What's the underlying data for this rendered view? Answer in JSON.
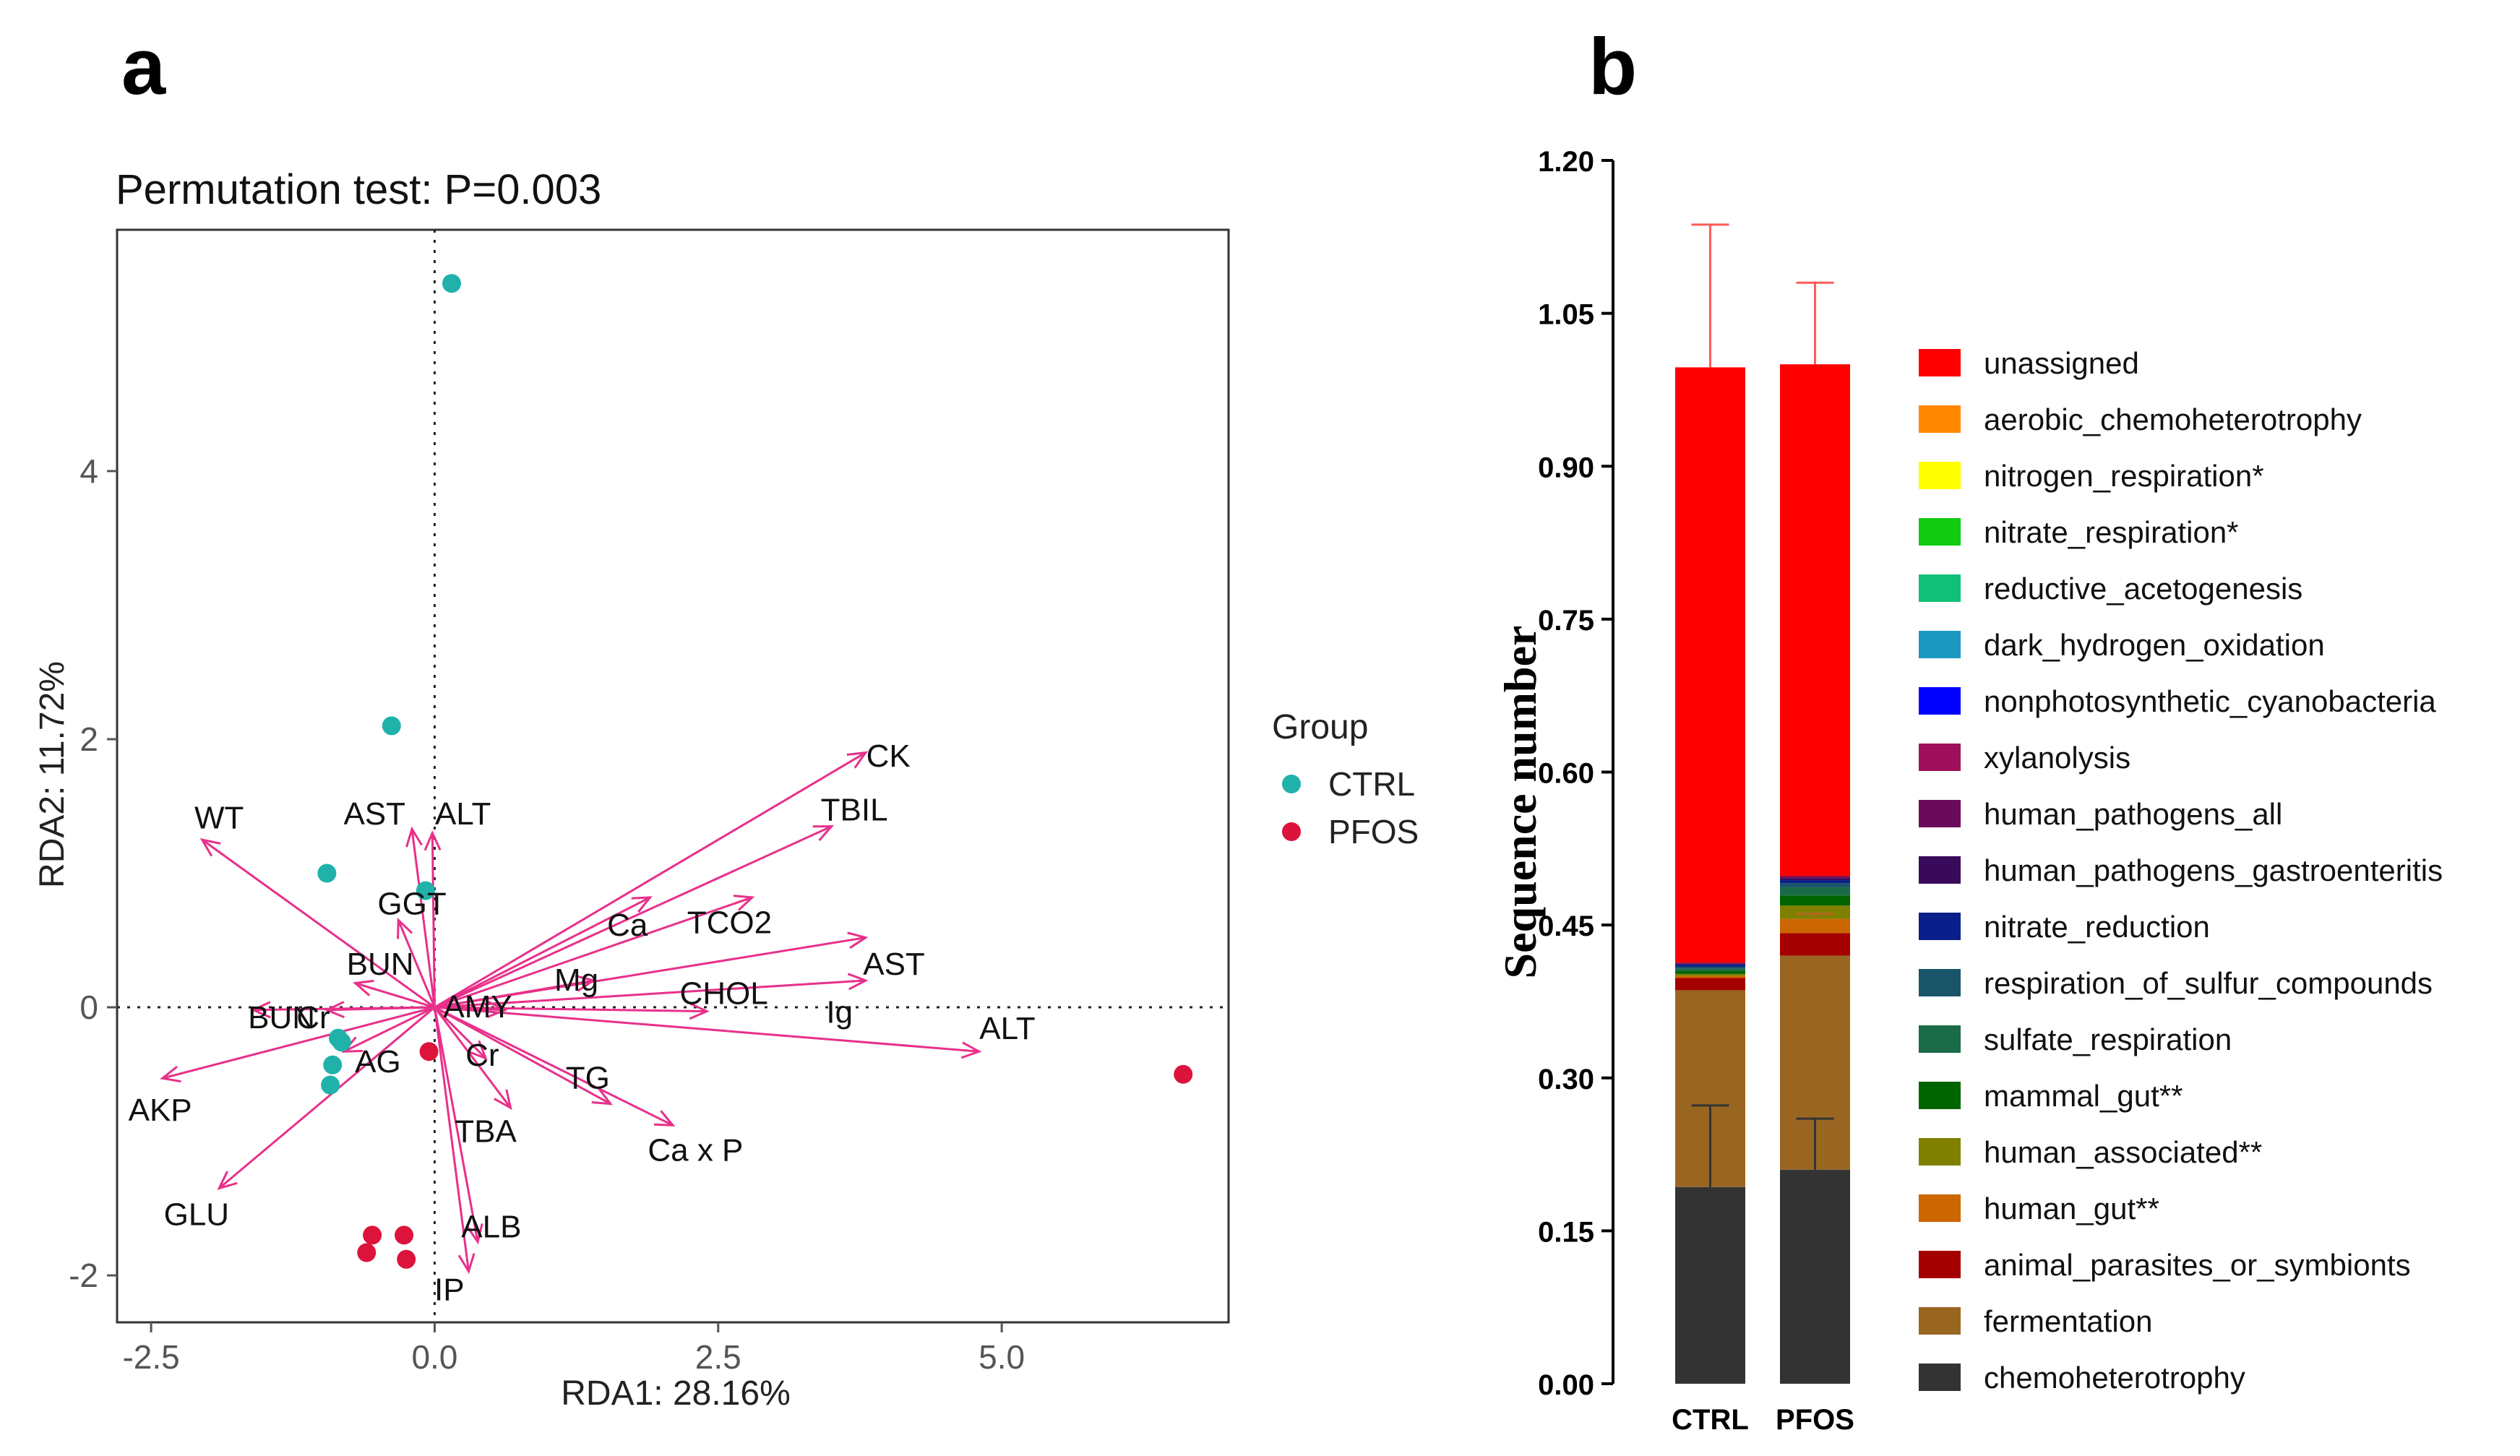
{
  "panel_a": {
    "label": "a",
    "title": "Permutation test: P=0.003",
    "legend_title": "Group"
  },
  "panel_b": {
    "label": "b"
  },
  "colors": {
    "CTRL": "#20b2aa",
    "PFOS": "#dc143c",
    "arrow": "#e8308a"
  },
  "chart_data": [
    {
      "type": "scatter",
      "title": "Permutation test: P=0.003",
      "xlabel": "RDA1: 28.16%",
      "ylabel": "RDA2: 11.72%",
      "xlim": [
        -2.8,
        7.0
      ],
      "ylim": [
        -2.35,
        5.8
      ],
      "x_ticks": [
        -2.5,
        0.0,
        2.5,
        5.0
      ],
      "x_tick_labels": [
        "-2.5",
        "0.0",
        "2.5",
        "5.0"
      ],
      "y_ticks": [
        -2,
        0,
        2,
        4
      ],
      "y_tick_labels": [
        "-2",
        "0",
        "2",
        "4"
      ],
      "grid": false,
      "legend_position": "right",
      "series": [
        {
          "name": "CTRL",
          "points": [
            [
              0.15,
              5.4
            ],
            [
              -0.38,
              2.1
            ],
            [
              -0.95,
              1.0
            ],
            [
              -0.08,
              0.87
            ],
            [
              -0.85,
              -0.23
            ],
            [
              -0.82,
              -0.26
            ],
            [
              -0.9,
              -0.43
            ],
            [
              -0.92,
              -0.58
            ]
          ]
        },
        {
          "name": "PFOS",
          "points": [
            [
              6.6,
              -0.5
            ],
            [
              -0.05,
              -0.33
            ],
            [
              -0.55,
              -1.7
            ],
            [
              -0.27,
              -1.7
            ],
            [
              -0.6,
              -1.83
            ],
            [
              -0.25,
              -1.88
            ]
          ]
        }
      ],
      "vectors": [
        {
          "name": "CK",
          "x": 3.8,
          "y": 1.9,
          "label_x": 4.0,
          "label_y": 1.88
        },
        {
          "name": "TBIL",
          "x": 3.5,
          "y": 1.35,
          "label_x": 3.7,
          "label_y": 1.48
        },
        {
          "name": "TCO2",
          "x": 2.8,
          "y": 0.82,
          "label_x": 2.6,
          "label_y": 0.64
        },
        {
          "name": "Ca",
          "x": 1.9,
          "y": 0.82,
          "label_x": 1.7,
          "label_y": 0.62
        },
        {
          "name": "AST",
          "x": 3.8,
          "y": 0.52,
          "label_x": 4.05,
          "label_y": 0.33
        },
        {
          "name": "Mg",
          "x": 1.4,
          "y": 0.2,
          "label_x": 1.25,
          "label_y": 0.21
        },
        {
          "name": "CHOL",
          "x": 3.8,
          "y": 0.2,
          "label_x": 2.55,
          "label_y": 0.11
        },
        {
          "name": "Ig",
          "x": 2.4,
          "y": -0.03,
          "label_x": 3.57,
          "label_y": -0.03
        },
        {
          "name": "ALT",
          "x": 4.8,
          "y": -0.33,
          "label_x": 5.05,
          "label_y": -0.15
        },
        {
          "name": "TG",
          "x": 1.55,
          "y": -0.72,
          "label_x": 1.35,
          "label_y": -0.52
        },
        {
          "name": "Ca x P",
          "x": 2.1,
          "y": -0.88,
          "label_x": 2.3,
          "label_y": -1.06
        },
        {
          "name": "TBA",
          "x": 0.67,
          "y": -0.75,
          "label_x": 0.45,
          "label_y": -0.92
        },
        {
          "name": "Cr",
          "x": 0.45,
          "y": -0.38,
          "label_x": 0.42,
          "label_y": -0.35
        },
        {
          "name": "AMY",
          "x": 0.62,
          "y": -0.02,
          "label_x": 0.38,
          "label_y": 0.01
        },
        {
          "name": "ALB",
          "x": 0.38,
          "y": -1.75,
          "label_x": 0.5,
          "label_y": -1.63
        },
        {
          "name": "IP",
          "x": 0.3,
          "y": -1.97,
          "label_x": 0.13,
          "label_y": -2.1
        },
        {
          "name": "GGT",
          "x": -0.32,
          "y": 0.65,
          "label_x": -0.2,
          "label_y": 0.78
        },
        {
          "name": "AST",
          "x": -0.2,
          "y": 1.33,
          "label_x": -0.53,
          "label_y": 1.45
        },
        {
          "name": "ALT",
          "x": -0.02,
          "y": 1.3,
          "label_x": 0.25,
          "label_y": 1.45
        },
        {
          "name": "BUN",
          "x": -0.7,
          "y": 0.18,
          "label_x": -0.48,
          "label_y": 0.33
        },
        {
          "name": "BUN",
          "x": -1.6,
          "y": -0.02,
          "label_x": -1.35,
          "label_y": -0.07
        },
        {
          "name": "Cr",
          "x": -0.95,
          "y": -0.02,
          "label_x": -1.07,
          "label_y": -0.07
        },
        {
          "name": "AG",
          "x": -0.8,
          "y": -0.33,
          "label_x": -0.5,
          "label_y": -0.4
        },
        {
          "name": "WT",
          "x": -2.05,
          "y": 1.25,
          "label_x": -1.9,
          "label_y": 1.42
        },
        {
          "name": "AKP",
          "x": -2.4,
          "y": -0.53,
          "label_x": -2.42,
          "label_y": -0.76
        },
        {
          "name": "GLU",
          "x": -1.9,
          "y": -1.35,
          "label_x": -2.1,
          "label_y": -1.54
        }
      ]
    },
    {
      "type": "bar",
      "stacked": true,
      "title": "",
      "xlabel": "",
      "ylabel": "Sequence number",
      "categories": [
        "CTRL",
        "PFOS"
      ],
      "ylim": [
        0,
        1.2
      ],
      "y_ticks": [
        0,
        0.15,
        0.3,
        0.45,
        0.6,
        0.75,
        0.9,
        1.05,
        1.2
      ],
      "y_tick_labels": [
        "0.00",
        "0.15",
        "0.30",
        "0.45",
        "0.60",
        "0.75",
        "0.90",
        "1.05",
        "1.20"
      ],
      "legend_position": "right",
      "series": [
        {
          "name": "chemoheterotrophy",
          "color": "#333333",
          "values": [
            0.193,
            0.21
          ],
          "error": [
            0.08,
            0.05
          ]
        },
        {
          "name": "fermentation",
          "color": "#996622",
          "values": [
            0.193,
            0.21
          ],
          "error": [
            0.0,
            0.0
          ]
        },
        {
          "name": "animal_parasites_or_symbionts",
          "color": "#a50000",
          "values": [
            0.012,
            0.022
          ],
          "error": [
            0.0,
            0.0
          ]
        },
        {
          "name": "human_gut**",
          "color": "#cc6600",
          "values": [
            0.002,
            0.014
          ],
          "error": [
            0.0,
            0.005
          ]
        },
        {
          "name": "human_associated**",
          "color": "#808000",
          "values": [
            0.002,
            0.013
          ],
          "error": [
            0.0,
            0.0
          ]
        },
        {
          "name": "mammal_gut**",
          "color": "#006400",
          "values": [
            0.003,
            0.01
          ],
          "error": [
            0.0,
            0.0
          ]
        },
        {
          "name": "sulfate_respiration",
          "color": "#1b6b49",
          "values": [
            0.002,
            0.008
          ],
          "error": [
            0.0,
            0.0
          ]
        },
        {
          "name": "respiration_of_sulfur_compounds",
          "color": "#1a5468",
          "values": [
            0.002,
            0.004
          ],
          "error": [
            0.0,
            0.0
          ]
        },
        {
          "name": "nitrate_reduction",
          "color": "#0a1f8a",
          "values": [
            0.002,
            0.003
          ],
          "error": [
            0.0,
            0.0
          ]
        },
        {
          "name": "human_pathogens_gastroenteritis",
          "color": "#3a0a5a",
          "values": [
            0.001,
            0.002
          ],
          "error": [
            0.0,
            0.0
          ]
        },
        {
          "name": "human_pathogens_all",
          "color": "#6a0a5a",
          "values": [
            0.001,
            0.002
          ],
          "error": [
            0.0,
            0.0
          ]
        },
        {
          "name": "xylanolysis",
          "color": "#a0105a",
          "values": [
            0.0,
            0.0
          ],
          "error": [
            0.0,
            0.0
          ]
        },
        {
          "name": "nonphotosynthetic_cyanobacteria",
          "color": "#0000ff",
          "values": [
            0.0,
            0.0
          ],
          "error": [
            0.0,
            0.0
          ]
        },
        {
          "name": "dark_hydrogen_oxidation",
          "color": "#1a98c0",
          "values": [
            0.0,
            0.0
          ],
          "error": [
            0.0,
            0.0
          ]
        },
        {
          "name": "reductive_acetogenesis",
          "color": "#11c078",
          "values": [
            0.0,
            0.0
          ],
          "error": [
            0.0,
            0.0
          ]
        },
        {
          "name": "nitrate_respiration*",
          "color": "#11cc11",
          "values": [
            0.0,
            0.0
          ],
          "error": [
            0.0,
            0.0
          ]
        },
        {
          "name": "nitrogen_respiration*",
          "color": "#ffff00",
          "values": [
            0.0,
            0.0
          ],
          "error": [
            0.0,
            0.0
          ]
        },
        {
          "name": "aerobic_chemoheterotrophy",
          "color": "#ff8800",
          "values": [
            0.0,
            0.0
          ],
          "error": [
            0.0,
            0.0
          ]
        },
        {
          "name": "unassigned",
          "color": "#ff0000",
          "values": [
            0.584,
            0.502
          ],
          "error": [
            0.14,
            0.08
          ]
        }
      ]
    }
  ]
}
